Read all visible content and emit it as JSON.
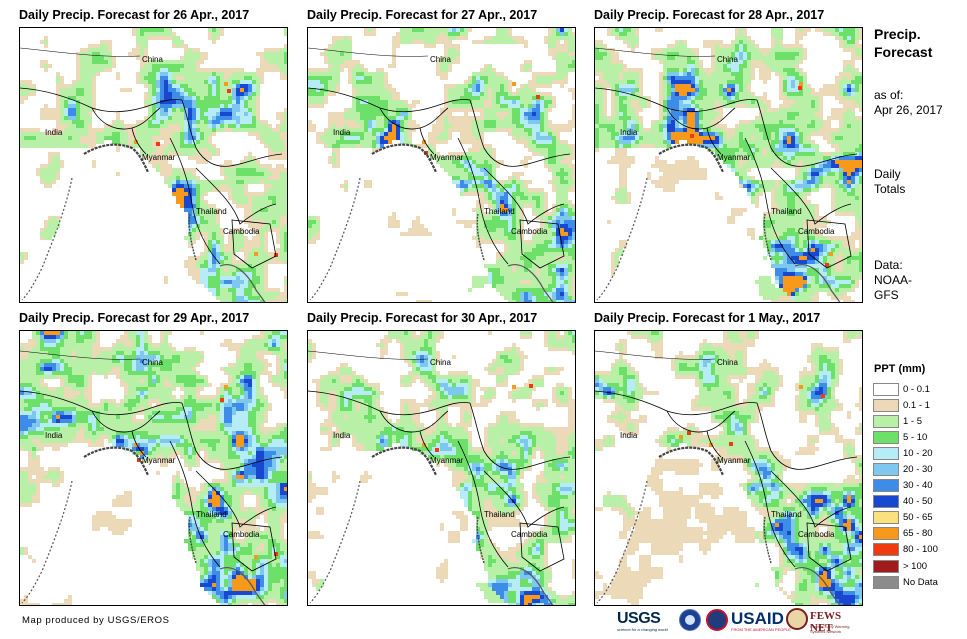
{
  "panels": [
    {
      "title": "Daily Precip. Forecast for 26 Apr., 2017",
      "seed": 11,
      "wet": 0.55
    },
    {
      "title": "Daily Precip. Forecast for 27 Apr., 2017",
      "seed": 23,
      "wet": 0.6
    },
    {
      "title": "Daily Precip. Forecast for 28 Apr., 2017",
      "seed": 37,
      "wet": 0.75
    },
    {
      "title": "Daily Precip. Forecast for 29 Apr., 2017",
      "seed": 41,
      "wet": 0.7
    },
    {
      "title": "Daily Precip. Forecast for 30 Apr., 2017",
      "seed": 53,
      "wet": 0.62
    },
    {
      "title": "Daily Precip. Forecast for 1 May., 2017",
      "seed": 67,
      "wet": 0.58
    }
  ],
  "map_labels": {
    "china": "China",
    "india": "India",
    "myanmar": "Myanmar",
    "thailand": "Thailand",
    "cambodia": "Cambodia"
  },
  "side": {
    "title_line1": "Precip.",
    "title_line2": "Forecast",
    "asof_line1": "as of:",
    "asof_line2": "Apr 26, 2017",
    "totals_line1": "Daily",
    "totals_line2": "Totals",
    "data_line1": "Data:",
    "data_line2": "NOAA-",
    "data_line3": "GFS"
  },
  "legend": {
    "title": "PPT (mm)",
    "items": [
      {
        "label": "0 - 0.1",
        "color": "#ffffff"
      },
      {
        "label": "0.1 - 1",
        "color": "#ecd9b8"
      },
      {
        "label": "1 - 5",
        "color": "#b8f0a8"
      },
      {
        "label": "5 - 10",
        "color": "#6de06a"
      },
      {
        "label": "10 - 20",
        "color": "#b6ecf5"
      },
      {
        "label": "20 - 30",
        "color": "#7ec8f0"
      },
      {
        "label": "30 - 40",
        "color": "#3c8ce8"
      },
      {
        "label": "40 - 50",
        "color": "#1848d0"
      },
      {
        "label": "50 - 65",
        "color": "#fbe07e"
      },
      {
        "label": "65 - 80",
        "color": "#f79a1c"
      },
      {
        "label": "80 - 100",
        "color": "#f03a10"
      },
      {
        "label": "> 100",
        "color": "#a01c1c"
      },
      {
        "label": "No Data",
        "color": "#8c8c8c"
      }
    ]
  },
  "footer": "Map produced by USGS/EROS",
  "logos": {
    "usgs": "USGS",
    "usgs_tag": "science for a changing world",
    "usaid": "USAID",
    "usaid_tag": "FROM THE AMERICAN PEOPLE",
    "fews": "FEWS NET",
    "fews_tag": "Famine Early Warning Systems Network"
  }
}
